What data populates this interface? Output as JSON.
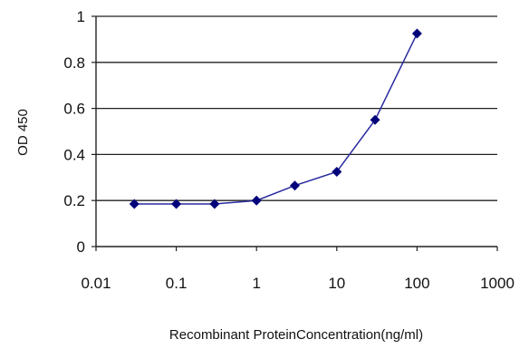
{
  "chart_data": {
    "type": "line",
    "title": "",
    "xlabel": "Recombinant ProteinConcentration(ng/ml)",
    "ylabel": "OD 450",
    "x_scale": "log",
    "xlim": [
      0.01,
      1000
    ],
    "ylim": [
      0,
      1
    ],
    "x_tick_labels": [
      "0.01",
      "0.1",
      "1",
      "10",
      "100",
      "1000"
    ],
    "y_tick_labels": [
      "0",
      "0.2",
      "0.4",
      "0.6",
      "0.8",
      "1"
    ],
    "x_ticks": [
      0.01,
      0.1,
      1,
      10,
      100,
      1000
    ],
    "y_ticks": [
      0,
      0.2,
      0.4,
      0.6,
      0.8,
      1
    ],
    "grid": "horizontal",
    "legend": "none",
    "series": [
      {
        "x": [
          0.03,
          0.1,
          0.3,
          1,
          3,
          10,
          30,
          100
        ],
        "values": [
          0.185,
          0.185,
          0.185,
          0.2,
          0.265,
          0.325,
          0.55,
          0.925
        ],
        "color": "#2a2aa0",
        "marker": "diamond",
        "marker_color": "#00007a"
      }
    ]
  }
}
